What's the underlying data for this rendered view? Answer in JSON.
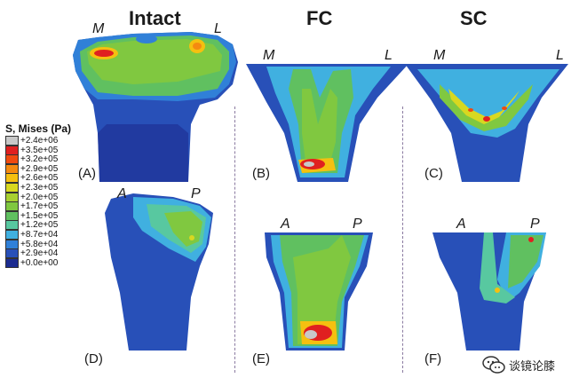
{
  "columns": {
    "intact": "Intact",
    "fc": "FC",
    "sc": "SC"
  },
  "orientation": {
    "medial": "M",
    "lateral": "L",
    "anterior": "A",
    "posterior": "P"
  },
  "panels": [
    "(A)",
    "(B)",
    "(C)",
    "(D)",
    "(E)",
    "(F)"
  ],
  "legend": {
    "title": "S, Mises (Pa)",
    "entries": [
      {
        "value": "+2.4e+06",
        "color": "#c8c8c8"
      },
      {
        "value": "+3.5e+05",
        "color": "#e02020"
      },
      {
        "value": "+3.2e+05",
        "color": "#f04a10"
      },
      {
        "value": "+2.9e+05",
        "color": "#f58a10"
      },
      {
        "value": "+2.6e+05",
        "color": "#f5c010"
      },
      {
        "value": "+2.3e+05",
        "color": "#d8d820"
      },
      {
        "value": "+2.0e+05",
        "color": "#a8d030"
      },
      {
        "value": "+1.7e+05",
        "color": "#80c840"
      },
      {
        "value": "+1.5e+05",
        "color": "#60c060"
      },
      {
        "value": "+1.2e+05",
        "color": "#58c8a0"
      },
      {
        "value": "+8.7e+04",
        "color": "#40b0e0"
      },
      {
        "value": "+5.8e+04",
        "color": "#3080d8"
      },
      {
        "value": "+2.9e+04",
        "color": "#2850b8"
      },
      {
        "value": "+0.0e+00",
        "color": "#1c2c90"
      }
    ]
  },
  "watermark": {
    "text": "谈镜论膝"
  }
}
